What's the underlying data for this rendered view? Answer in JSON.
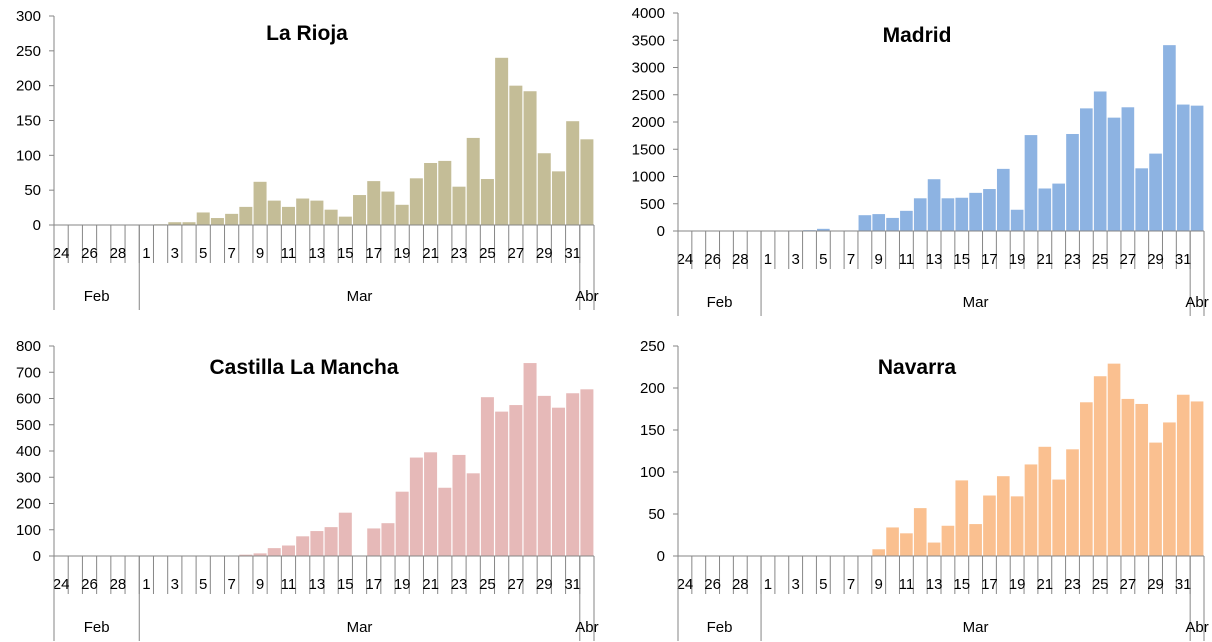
{
  "chart_data": [
    {
      "type": "bar",
      "title": "La Rioja",
      "color": "#c4bd97",
      "ylim": [
        0,
        300
      ],
      "yticks": [
        "0",
        "50",
        "100",
        "150",
        "200",
        "250",
        "300"
      ],
      "xlabels": [
        "24",
        "26",
        "28",
        "1",
        "3",
        "5",
        "7",
        "9",
        "11",
        "13",
        "15",
        "17",
        "19",
        "21",
        "23",
        "25",
        "27",
        "29",
        "31"
      ],
      "months": [
        "Feb",
        "Mar",
        "Abr"
      ],
      "categories": [
        "24 Feb",
        "25 Feb",
        "26 Feb",
        "27 Feb",
        "28 Feb",
        "29 Feb",
        "1 Mar",
        "2 Mar",
        "3 Mar",
        "4 Mar",
        "5 Mar",
        "6 Mar",
        "7 Mar",
        "8 Mar",
        "9 Mar",
        "10 Mar",
        "11 Mar",
        "12 Mar",
        "13 Mar",
        "14 Mar",
        "15 Mar",
        "16 Mar",
        "17 Mar",
        "18 Mar",
        "19 Mar",
        "20 Mar",
        "21 Mar",
        "22 Mar",
        "23 Mar",
        "24 Mar",
        "25 Mar",
        "26 Mar",
        "27 Mar",
        "28 Mar",
        "29 Mar",
        "30 Mar",
        "31 Mar",
        "1 Abr"
      ],
      "values": [
        0,
        0,
        0,
        0,
        0,
        0,
        0,
        1,
        4,
        4,
        18,
        10,
        16,
        26,
        62,
        35,
        26,
        38,
        35,
        22,
        12,
        43,
        63,
        48,
        29,
        67,
        89,
        92,
        55,
        125,
        66,
        240,
        200,
        192,
        103,
        77,
        149,
        123
      ]
    },
    {
      "type": "bar",
      "title": "Madrid",
      "color": "#8db3e2",
      "ylim": [
        0,
        4000
      ],
      "yticks": [
        "0",
        "500",
        "1000",
        "1500",
        "2000",
        "2500",
        "3000",
        "3500",
        "4000"
      ],
      "xlabels": [
        "24",
        "26",
        "28",
        "1",
        "3",
        "5",
        "7",
        "9",
        "11",
        "13",
        "15",
        "17",
        "19",
        "21",
        "23",
        "25",
        "27",
        "29",
        "31"
      ],
      "months": [
        "Feb",
        "Mar",
        "Abr"
      ],
      "categories": [
        "24 Feb",
        "25 Feb",
        "26 Feb",
        "27 Feb",
        "28 Feb",
        "29 Feb",
        "1 Mar",
        "2 Mar",
        "3 Mar",
        "4 Mar",
        "5 Mar",
        "6 Mar",
        "7 Mar",
        "8 Mar",
        "9 Mar",
        "10 Mar",
        "11 Mar",
        "12 Mar",
        "13 Mar",
        "14 Mar",
        "15 Mar",
        "16 Mar",
        "17 Mar",
        "18 Mar",
        "19 Mar",
        "20 Mar",
        "21 Mar",
        "22 Mar",
        "23 Mar",
        "24 Mar",
        "25 Mar",
        "26 Mar",
        "27 Mar",
        "28 Mar",
        "29 Mar",
        "30 Mar",
        "31 Mar",
        "1 Abr"
      ],
      "values": [
        0,
        0,
        0,
        0,
        0,
        0,
        0,
        5,
        10,
        15,
        40,
        5,
        10,
        290,
        310,
        240,
        370,
        600,
        950,
        600,
        610,
        700,
        770,
        1140,
        390,
        1760,
        780,
        870,
        1780,
        2250,
        2560,
        2080,
        2270,
        1150,
        1420,
        3410,
        2320,
        2300
      ]
    },
    {
      "type": "bar",
      "title": "Castilla La Mancha",
      "color": "#e6b9b8",
      "ylim": [
        0,
        800
      ],
      "yticks": [
        "0",
        "100",
        "200",
        "300",
        "400",
        "500",
        "600",
        "700",
        "800"
      ],
      "xlabels": [
        "24",
        "26",
        "28",
        "1",
        "3",
        "5",
        "7",
        "9",
        "11",
        "13",
        "15",
        "17",
        "19",
        "21",
        "23",
        "25",
        "27",
        "29",
        "31"
      ],
      "months": [
        "Feb",
        "Mar",
        "Abr"
      ],
      "categories": [
        "24 Feb",
        "25 Feb",
        "26 Feb",
        "27 Feb",
        "28 Feb",
        "29 Feb",
        "1 Mar",
        "2 Mar",
        "3 Mar",
        "4 Mar",
        "5 Mar",
        "6 Mar",
        "7 Mar",
        "8 Mar",
        "9 Mar",
        "10 Mar",
        "11 Mar",
        "12 Mar",
        "13 Mar",
        "14 Mar",
        "15 Mar",
        "16 Mar",
        "17 Mar",
        "18 Mar",
        "19 Mar",
        "20 Mar",
        "21 Mar",
        "22 Mar",
        "23 Mar",
        "24 Mar",
        "25 Mar",
        "26 Mar",
        "27 Mar",
        "28 Mar",
        "29 Mar",
        "30 Mar",
        "31 Mar",
        "1 Abr"
      ],
      "values": [
        0,
        0,
        0,
        0,
        0,
        0,
        0,
        0,
        0,
        0,
        0,
        0,
        0,
        5,
        10,
        30,
        40,
        75,
        95,
        110,
        165,
        0,
        105,
        125,
        245,
        375,
        395,
        260,
        385,
        315,
        605,
        550,
        575,
        735,
        610,
        565,
        620,
        635
      ]
    },
    {
      "type": "bar",
      "title": "Navarra",
      "color": "#fac090",
      "ylim": [
        0,
        250
      ],
      "yticks": [
        "0",
        "50",
        "100",
        "150",
        "200",
        "250"
      ],
      "xlabels": [
        "24",
        "26",
        "28",
        "1",
        "3",
        "5",
        "7",
        "9",
        "11",
        "13",
        "15",
        "17",
        "19",
        "21",
        "23",
        "25",
        "27",
        "29",
        "31"
      ],
      "months": [
        "Feb",
        "Mar",
        "Abr"
      ],
      "categories": [
        "24 Feb",
        "25 Feb",
        "26 Feb",
        "27 Feb",
        "28 Feb",
        "29 Feb",
        "1 Mar",
        "2 Mar",
        "3 Mar",
        "4 Mar",
        "5 Mar",
        "6 Mar",
        "7 Mar",
        "8 Mar",
        "9 Mar",
        "10 Mar",
        "11 Mar",
        "12 Mar",
        "13 Mar",
        "14 Mar",
        "15 Mar",
        "16 Mar",
        "17 Mar",
        "18 Mar",
        "19 Mar",
        "20 Mar",
        "21 Mar",
        "22 Mar",
        "23 Mar",
        "24 Mar",
        "25 Mar",
        "26 Mar",
        "27 Mar",
        "28 Mar",
        "29 Mar",
        "30 Mar",
        "31 Mar",
        "1 Abr"
      ],
      "values": [
        0,
        0,
        0,
        0,
        0,
        0,
        0,
        0,
        0,
        0,
        0,
        0,
        0,
        0,
        8,
        34,
        27,
        57,
        16,
        36,
        90,
        38,
        72,
        95,
        71,
        109,
        130,
        91,
        127,
        183,
        214,
        229,
        187,
        181,
        135,
        159,
        192,
        184
      ]
    }
  ]
}
